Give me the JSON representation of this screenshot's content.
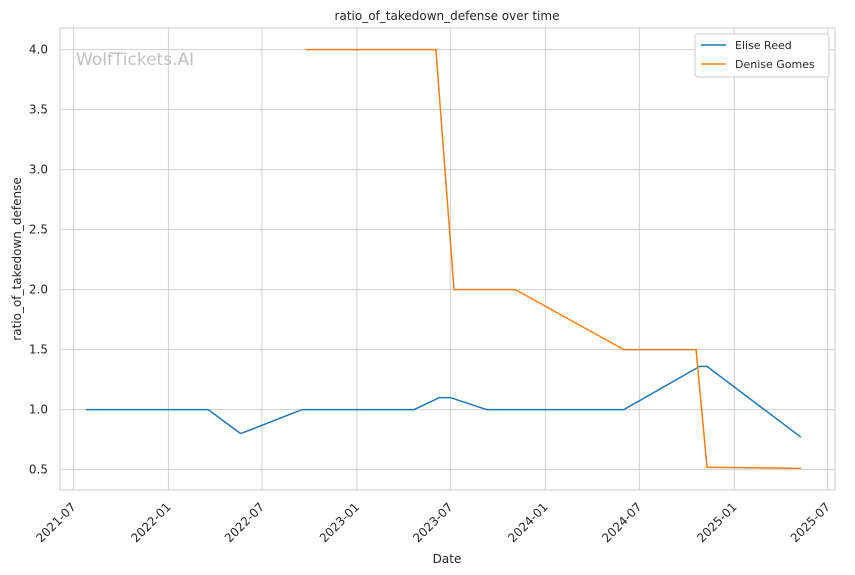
{
  "chart_data": {
    "type": "line",
    "title": "ratio_of_takedown_defense over time",
    "xlabel": "Date",
    "ylabel": "ratio_of_takedown_defense",
    "watermark": "WolfTickets.AI",
    "xlim": [
      "2021-06-05",
      "2025-07-15"
    ],
    "ylim": [
      0.33,
      4.18
    ],
    "grid": true,
    "legend_position": "top-right",
    "x_ticks": [
      "2021-07-01",
      "2022-01-01",
      "2022-07-01",
      "2023-01-01",
      "2023-07-01",
      "2024-01-01",
      "2024-07-01",
      "2025-01-01",
      "2025-07-01"
    ],
    "x_tick_labels": [
      "2021-07",
      "2022-01",
      "2022-07",
      "2023-01",
      "2023-07",
      "2024-01",
      "2024-07",
      "2025-01",
      "2025-07"
    ],
    "y_ticks": [
      0.5,
      1.0,
      1.5,
      2.0,
      2.5,
      3.0,
      3.5,
      4.0
    ],
    "y_tick_labels": [
      "0.5",
      "1.0",
      "1.5",
      "2.0",
      "2.5",
      "3.0",
      "3.5",
      "4.0"
    ],
    "series": [
      {
        "name": "Elise Reed",
        "color": "#1f77b4",
        "points": [
          {
            "x": "2021-07-25",
            "y": 1.0
          },
          {
            "x": "2022-03-19",
            "y": 1.0
          },
          {
            "x": "2022-05-21",
            "y": 0.8
          },
          {
            "x": "2022-09-17",
            "y": 1.0
          },
          {
            "x": "2023-04-22",
            "y": 1.0
          },
          {
            "x": "2023-06-10",
            "y": 1.1
          },
          {
            "x": "2023-07-01",
            "y": 1.1
          },
          {
            "x": "2023-09-09",
            "y": 1.0
          },
          {
            "x": "2024-06-01",
            "y": 1.0
          },
          {
            "x": "2024-10-26",
            "y": 1.36
          },
          {
            "x": "2024-11-09",
            "y": 1.36
          },
          {
            "x": "2025-05-10",
            "y": 0.77
          }
        ]
      },
      {
        "name": "Denise Gomes",
        "color": "#ff7f0e",
        "points": [
          {
            "x": "2022-09-24",
            "y": 4.0
          },
          {
            "x": "2023-06-03",
            "y": 4.0
          },
          {
            "x": "2023-07-08",
            "y": 2.0
          },
          {
            "x": "2023-11-04",
            "y": 2.0
          },
          {
            "x": "2024-06-01",
            "y": 1.5
          },
          {
            "x": "2024-10-19",
            "y": 1.5
          },
          {
            "x": "2024-11-09",
            "y": 0.52
          },
          {
            "x": "2025-05-10",
            "y": 0.51
          }
        ]
      }
    ]
  }
}
